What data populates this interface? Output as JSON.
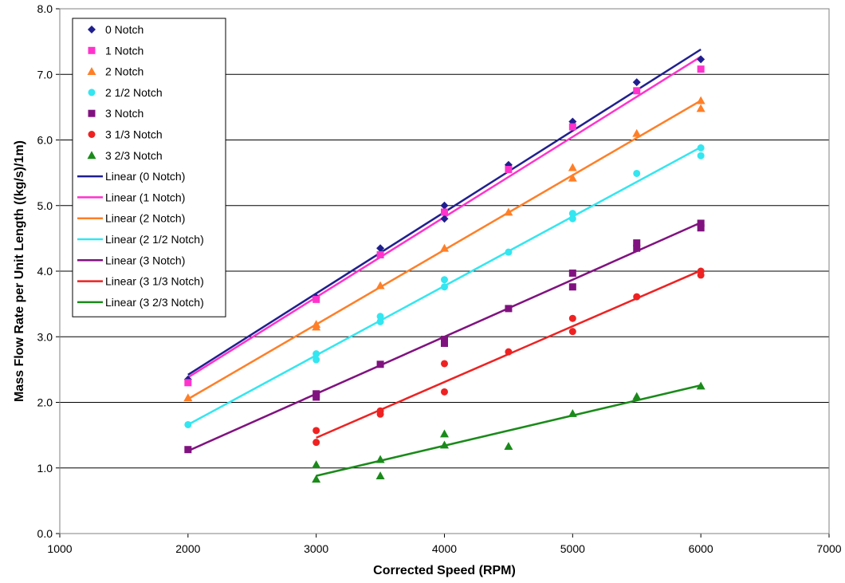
{
  "chart_data": {
    "type": "scatter",
    "xlabel": "Corrected Speed (RPM)",
    "ylabel": "Mass Flow Rate per Unit Length ((kg/s)/1m)",
    "xlim": [
      1000,
      7000
    ],
    "ylim": [
      0,
      8
    ],
    "x_ticks": [
      "1000",
      "2000",
      "3000",
      "4000",
      "5000",
      "6000",
      "7000"
    ],
    "y_ticks": [
      "0.0",
      "1.0",
      "2.0",
      "3.0",
      "4.0",
      "5.0",
      "6.0",
      "7.0",
      "8.0"
    ],
    "grid": "horizontal major gridlines",
    "legend_position": "top-left",
    "series": [
      {
        "name": "0 Notch",
        "marker": "diamond",
        "color": "#1f1f8f",
        "points": [
          [
            2000,
            2.35
          ],
          [
            3000,
            3.6
          ],
          [
            3500,
            4.35
          ],
          [
            4000,
            4.8
          ],
          [
            4000,
            5.0
          ],
          [
            4500,
            5.62
          ],
          [
            5000,
            6.28
          ],
          [
            5500,
            6.88
          ],
          [
            6000,
            7.23
          ]
        ]
      },
      {
        "name": "1 Notch",
        "marker": "square",
        "color": "#ff33cc",
        "points": [
          [
            2000,
            2.3
          ],
          [
            3000,
            3.57
          ],
          [
            3500,
            4.25
          ],
          [
            4000,
            4.9
          ],
          [
            4500,
            5.55
          ],
          [
            5000,
            6.2
          ],
          [
            5500,
            6.75
          ],
          [
            6000,
            7.08
          ]
        ]
      },
      {
        "name": "2 Notch",
        "marker": "triangle",
        "color": "#ff7f27",
        "points": [
          [
            2000,
            2.07
          ],
          [
            3000,
            3.15
          ],
          [
            3000,
            3.19
          ],
          [
            3500,
            3.78
          ],
          [
            4000,
            4.35
          ],
          [
            4500,
            4.9
          ],
          [
            5000,
            5.42
          ],
          [
            5000,
            5.58
          ],
          [
            5500,
            6.1
          ],
          [
            6000,
            6.48
          ],
          [
            6000,
            6.6
          ]
        ]
      },
      {
        "name": "2 1/2 Notch",
        "marker": "circle",
        "color": "#33e6f0",
        "points": [
          [
            2000,
            1.66
          ],
          [
            3000,
            2.65
          ],
          [
            3000,
            2.74
          ],
          [
            3500,
            3.23
          ],
          [
            3500,
            3.31
          ],
          [
            4000,
            3.76
          ],
          [
            4000,
            3.87
          ],
          [
            4500,
            4.29
          ],
          [
            5000,
            4.8
          ],
          [
            5000,
            4.88
          ],
          [
            5500,
            5.49
          ],
          [
            6000,
            5.76
          ],
          [
            6000,
            5.88
          ]
        ]
      },
      {
        "name": "3 Notch",
        "marker": "square",
        "color": "#80127f",
        "points": [
          [
            2000,
            1.28
          ],
          [
            3000,
            2.08
          ],
          [
            3000,
            2.13
          ],
          [
            3500,
            2.58
          ],
          [
            4000,
            2.9
          ],
          [
            4000,
            2.96
          ],
          [
            4500,
            3.43
          ],
          [
            5000,
            3.76
          ],
          [
            5000,
            3.97
          ],
          [
            5500,
            4.35
          ],
          [
            5500,
            4.43
          ],
          [
            6000,
            4.66
          ],
          [
            6000,
            4.73
          ]
        ]
      },
      {
        "name": "3 1/3 Notch",
        "marker": "circle",
        "color": "#ee2222",
        "points": [
          [
            3000,
            1.39
          ],
          [
            3000,
            1.57
          ],
          [
            3500,
            1.82
          ],
          [
            3500,
            1.87
          ],
          [
            4000,
            2.16
          ],
          [
            4000,
            2.59
          ],
          [
            4500,
            2.77
          ],
          [
            5000,
            3.08
          ],
          [
            5000,
            3.28
          ],
          [
            5500,
            3.61
          ],
          [
            6000,
            3.94
          ],
          [
            6000,
            4.0
          ]
        ]
      },
      {
        "name": "3 2/3 Notch",
        "marker": "triangle",
        "color": "#1a8a1a",
        "points": [
          [
            3000,
            0.83
          ],
          [
            3000,
            1.05
          ],
          [
            3500,
            0.88
          ],
          [
            3500,
            1.13
          ],
          [
            4000,
            1.35
          ],
          [
            4000,
            1.52
          ],
          [
            4500,
            1.33
          ],
          [
            5000,
            1.83
          ],
          [
            5500,
            2.09
          ],
          [
            6000,
            2.25
          ]
        ]
      }
    ],
    "trendlines": [
      {
        "name": "Linear (0 Notch)",
        "color": "#1f1f8f",
        "from": [
          2000,
          2.42
        ],
        "to": [
          6000,
          7.38
        ]
      },
      {
        "name": "Linear (1 Notch)",
        "color": "#ff33cc",
        "from": [
          2000,
          2.38
        ],
        "to": [
          6000,
          7.27
        ]
      },
      {
        "name": "Linear (2 Notch)",
        "color": "#ff7f27",
        "from": [
          2000,
          2.05
        ],
        "to": [
          6000,
          6.6
        ]
      },
      {
        "name": "Linear (2 1/2 Notch)",
        "color": "#33e6f0",
        "from": [
          2000,
          1.66
        ],
        "to": [
          6000,
          5.89
        ]
      },
      {
        "name": "Linear (3 Notch)",
        "color": "#80127f",
        "from": [
          2000,
          1.26
        ],
        "to": [
          6000,
          4.74
        ]
      },
      {
        "name": "Linear (3 1/3 Notch)",
        "color": "#ee2222",
        "from": [
          3000,
          1.46
        ],
        "to": [
          6000,
          4.01
        ]
      },
      {
        "name": "Linear (3 2/3 Notch)",
        "color": "#1a8a1a",
        "from": [
          3000,
          0.88
        ],
        "to": [
          6000,
          2.26
        ]
      }
    ]
  }
}
